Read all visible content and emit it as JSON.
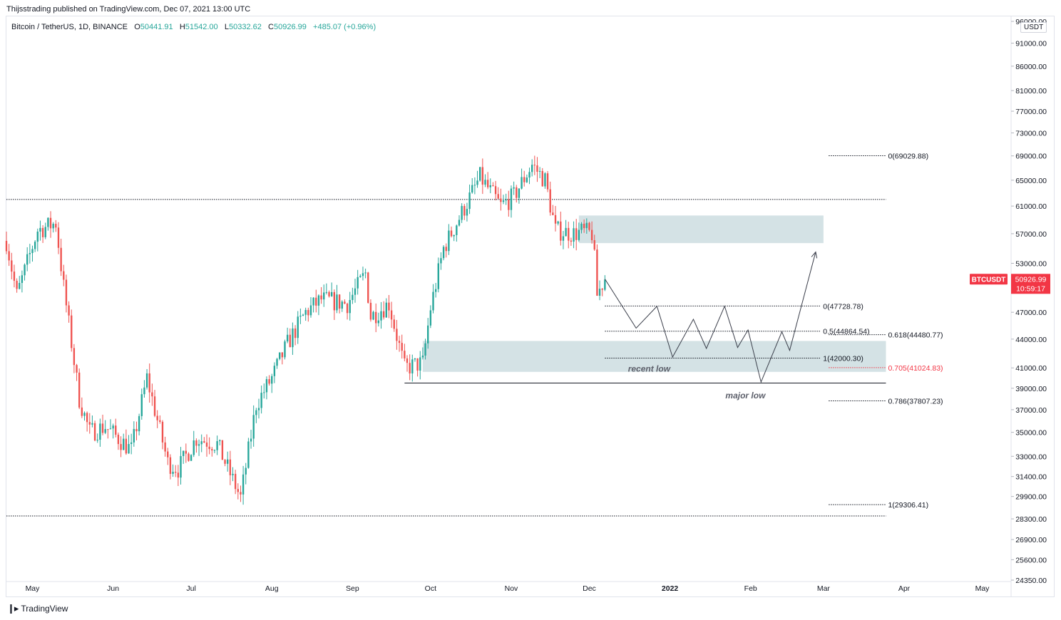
{
  "header": {
    "publisher": "Thijsstrading published on TradingView.com, Dec 07, 2021 13:00 UTC"
  },
  "legend": {
    "symbol": "Bitcoin / TetherUS, 1D, BINANCE",
    "open_label": "O",
    "open": "50441.91",
    "high_label": "H",
    "high": "51542.00",
    "low_label": "L",
    "low": "50332.62",
    "close_label": "C",
    "close": "50926.99",
    "change": "+485.07 (+0.96%)"
  },
  "currency_label": "USDT",
  "footer": {
    "brand": "TradingView"
  },
  "colors": {
    "up": "#26a69a",
    "down": "#ef5350",
    "zone": "#ccdde0",
    "accent": "#f23645"
  },
  "chart_data": {
    "type": "candlestick",
    "symbol": "BTCUSDT",
    "scale": "log",
    "ylim": [
      24350,
      96000
    ],
    "y_ticks": [
      "24350.00",
      "25600.00",
      "26900.00",
      "28300.00",
      "29900.00",
      "31400.00",
      "33000.00",
      "35000.00",
      "37000.00",
      "39000.00",
      "41000.00",
      "44000.00",
      "47000.00",
      "53000.00",
      "57000.00",
      "61000.00",
      "65000.00",
      "69000.00",
      "73000.00",
      "77000.00",
      "81000.00",
      "86000.00",
      "91000.00",
      "96000.00"
    ],
    "y_tick_values": [
      24350,
      25600,
      26900,
      28300,
      29900,
      31400,
      33000,
      35000,
      37000,
      39000,
      41000,
      44000,
      47000,
      53000,
      57000,
      61000,
      65000,
      69000,
      73000,
      77000,
      81000,
      86000,
      91000,
      96000
    ],
    "x_ticks": [
      "May",
      "Jun",
      "Jul",
      "Aug",
      "Sep",
      "Oct",
      "Nov",
      "Dec",
      "2022",
      "Feb",
      "Mar",
      "Apr",
      "May"
    ],
    "x_tick_dates": [
      "2021-05-01",
      "2021-06-01",
      "2021-07-01",
      "2021-08-01",
      "2021-09-01",
      "2021-10-01",
      "2021-11-01",
      "2021-12-01",
      "2022-01-01",
      "2022-02-01",
      "2022-03-01",
      "2022-04-01",
      "2022-05-01"
    ],
    "bold_ticks": [
      "2022"
    ],
    "date_range": [
      "2021-04-21",
      "2022-05-11"
    ],
    "price_badge": {
      "symbol": "BTCUSDT",
      "price": "50926.99",
      "countdown": "10:59:17",
      "value": 50926.99
    },
    "anchors": [
      {
        "date": "2021-04-21",
        "price": 56000
      },
      {
        "date": "2021-04-25",
        "price": 49000
      },
      {
        "date": "2021-05-03",
        "price": 57500
      },
      {
        "date": "2021-05-10",
        "price": 58500
      },
      {
        "date": "2021-05-13",
        "price": 50000
      },
      {
        "date": "2021-05-19",
        "price": 38000
      },
      {
        "date": "2021-05-23",
        "price": 35000
      },
      {
        "date": "2021-05-29",
        "price": 35500
      },
      {
        "date": "2021-06-08",
        "price": 33500
      },
      {
        "date": "2021-06-14",
        "price": 40000
      },
      {
        "date": "2021-06-22",
        "price": 32500
      },
      {
        "date": "2021-06-26",
        "price": 32000
      },
      {
        "date": "2021-07-03",
        "price": 34500
      },
      {
        "date": "2021-07-11",
        "price": 34000
      },
      {
        "date": "2021-07-20",
        "price": 29800
      },
      {
        "date": "2021-07-26",
        "price": 37500
      },
      {
        "date": "2021-08-01",
        "price": 40000
      },
      {
        "date": "2021-08-07",
        "price": 43500
      },
      {
        "date": "2021-08-14",
        "price": 47000
      },
      {
        "date": "2021-08-20",
        "price": 48500
      },
      {
        "date": "2021-08-30",
        "price": 48000
      },
      {
        "date": "2021-09-06",
        "price": 51700
      },
      {
        "date": "2021-09-08",
        "price": 46500
      },
      {
        "date": "2021-09-15",
        "price": 48000
      },
      {
        "date": "2021-09-21",
        "price": 41000
      },
      {
        "date": "2021-09-28",
        "price": 41500
      },
      {
        "date": "2021-10-01",
        "price": 47500
      },
      {
        "date": "2021-10-06",
        "price": 55000
      },
      {
        "date": "2021-10-15",
        "price": 61500
      },
      {
        "date": "2021-10-20",
        "price": 65500
      },
      {
        "date": "2021-10-28",
        "price": 61000
      },
      {
        "date": "2021-11-02",
        "price": 62500
      },
      {
        "date": "2021-11-09",
        "price": 67500
      },
      {
        "date": "2021-11-14",
        "price": 65000
      },
      {
        "date": "2021-11-18",
        "price": 57500
      },
      {
        "date": "2021-11-25",
        "price": 57000
      },
      {
        "date": "2021-11-28",
        "price": 57300
      },
      {
        "date": "2021-12-02",
        "price": 57000
      },
      {
        "date": "2021-12-03",
        "price": 53500
      },
      {
        "date": "2021-12-04",
        "price": 49000
      },
      {
        "date": "2021-12-06",
        "price": 50400
      },
      {
        "date": "2021-12-07",
        "price": 50927
      }
    ],
    "horizontal_lines": [
      {
        "price": 62000,
        "from": "2021-04-21",
        "to": "2022-03-25",
        "style": "dotted"
      },
      {
        "price": 28500,
        "from": "2021-04-21",
        "to": "2022-03-25",
        "style": "dotted"
      },
      {
        "price": 39500,
        "from": "2021-09-21",
        "to": "2022-03-25",
        "style": "solid"
      }
    ],
    "zones": [
      {
        "from": "2021-11-27",
        "to": "2022-03-01",
        "low": 55700,
        "high": 59600
      },
      {
        "from": "2021-09-28",
        "to": "2022-03-25",
        "low": 40600,
        "high": 43800
      }
    ],
    "fib_levels": [
      {
        "label": "0(69029.88)",
        "price": 69029.88,
        "from": "2022-03-03",
        "to": "2022-03-25",
        "label_date": "2022-03-25",
        "color": "#131722"
      },
      {
        "label": "0.618(44480.77)",
        "price": 44480.77,
        "from": "2022-03-03",
        "to": "2022-03-25",
        "label_date": "2022-03-25",
        "color": "#131722"
      },
      {
        "label": "0.705(41024.83)",
        "price": 41024.83,
        "from": "2022-03-03",
        "to": "2022-03-25",
        "label_date": "2022-03-25",
        "color": "#f23645"
      },
      {
        "label": "0.786(37807.23)",
        "price": 37807.23,
        "from": "2022-03-03",
        "to": "2022-03-25",
        "label_date": "2022-03-25",
        "color": "#131722"
      },
      {
        "label": "1(29306.41)",
        "price": 29306.41,
        "from": "2022-03-03",
        "to": "2022-03-25",
        "label_date": "2022-03-25",
        "color": "#131722"
      },
      {
        "label": "0(47728.78)",
        "price": 47728.78,
        "from": "2021-12-07",
        "to": "2022-02-28",
        "label_date": "2022-02-28",
        "color": "#131722"
      },
      {
        "label": "0.5(44864.54)",
        "price": 44864.54,
        "from": "2021-12-07",
        "to": "2022-02-28",
        "label_date": "2022-02-28",
        "color": "#131722"
      },
      {
        "label": "1(42000.30)",
        "price": 42000.3,
        "from": "2021-12-07",
        "to": "2022-02-28",
        "label_date": "2022-02-28",
        "color": "#131722"
      }
    ],
    "projection_path": [
      {
        "date": "2021-12-07",
        "price": 51000
      },
      {
        "date": "2021-12-19",
        "price": 45200
      },
      {
        "date": "2021-12-27",
        "price": 47700
      },
      {
        "date": "2022-01-02",
        "price": 42100
      },
      {
        "date": "2022-01-10",
        "price": 46200
      },
      {
        "date": "2022-01-15",
        "price": 43000
      },
      {
        "date": "2022-01-22",
        "price": 47700
      },
      {
        "date": "2022-01-27",
        "price": 43100
      },
      {
        "date": "2022-01-31",
        "price": 45000
      },
      {
        "date": "2022-02-05",
        "price": 39600
      },
      {
        "date": "2022-02-13",
        "price": 44800
      },
      {
        "date": "2022-02-16",
        "price": 42800
      },
      {
        "date": "2022-02-26",
        "price": 54500
      }
    ],
    "annotations": [
      {
        "text": "recent low",
        "date": "2021-12-24",
        "price": 40900
      },
      {
        "text": "major low",
        "date": "2022-01-30",
        "price": 38300
      }
    ]
  }
}
